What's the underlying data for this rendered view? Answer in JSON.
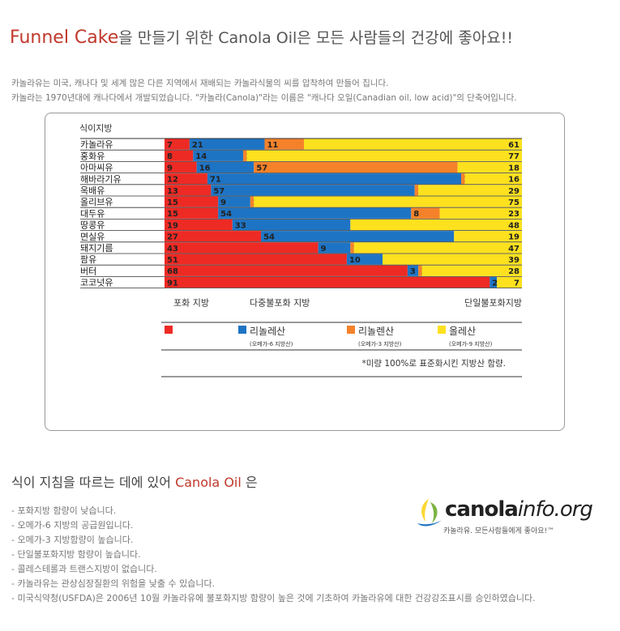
{
  "header": {
    "title_accent": "Funnel Cake",
    "title_rest": "을 만들기 위한 Canola Oil은 모든 사람들의 건강에 좋아요!!"
  },
  "intro": {
    "line1": "카놀라유는 미국, 캐나다 및 세계 많은 다른 지역에서 재배되는 카놀라식물의 씨를 압착하여 만들어 집니다.",
    "line2": "카놀라는 1970년대에 캐나다에서 개발되었습니다. \"카놀라(Canola)\"라는 이름은 \"캐나다 오일(Canadian oil, low acid)\"의 단축어입니다."
  },
  "chart_data": {
    "type": "bar",
    "stacked": true,
    "title": "식이지방",
    "categories": [
      "카놀라유",
      "홍화유",
      "아마씨유",
      "해바라기유",
      "옥배유",
      "올리브유",
      "대두유",
      "땅콩유",
      "면실유",
      "돼지기름",
      "팜유",
      "버터",
      "코코넛유"
    ],
    "series": [
      {
        "name": "포화 지방",
        "color": "#ee2a24",
        "values": [
          7,
          8,
          9,
          12,
          13,
          15,
          15,
          19,
          27,
          43,
          51,
          68,
          91
        ],
        "labels": [
          "7",
          "8",
          "9",
          "12",
          "13",
          "15",
          "15",
          "19",
          "27",
          "43",
          "51",
          "68",
          "91"
        ]
      },
      {
        "name": "리놀레산",
        "color": "#1e74c4",
        "values": [
          21,
          14,
          16,
          71,
          57,
          9,
          54,
          33,
          54,
          9,
          10,
          3,
          2
        ],
        "labels": [
          "21",
          "14",
          "16",
          "71",
          "57",
          "9",
          "54",
          "33",
          "54",
          "9",
          "10",
          "3",
          "2"
        ]
      },
      {
        "name": "리놀렌산",
        "color": "#f5822a",
        "values": [
          11,
          1,
          57,
          1,
          1,
          1,
          8,
          0,
          0,
          1,
          0,
          1,
          0
        ],
        "labels": [
          "11",
          "1",
          "57",
          "1",
          "1",
          "1",
          "8",
          "*",
          "*",
          "1",
          "*",
          "1",
          ""
        ]
      },
      {
        "name": "올레산",
        "color": "#fde11e",
        "values": [
          61,
          77,
          18,
          16,
          29,
          75,
          23,
          48,
          19,
          47,
          39,
          28,
          7
        ],
        "labels": [
          "61",
          "77",
          "18",
          "16",
          "29",
          "75",
          "23",
          "48",
          "19",
          "47",
          "39",
          "28",
          "7"
        ]
      }
    ],
    "xlim": [
      0,
      100
    ],
    "axis_labels": [
      "포화 지방",
      "다중불포화 지방",
      "단일불포화지방"
    ],
    "legend": [
      {
        "name": "",
        "color": "#ee2a24",
        "sub": ""
      },
      {
        "name": "리놀레산",
        "color": "#1e74c4",
        "sub": "(오메가-6 지방산)"
      },
      {
        "name": "리놀렌산",
        "color": "#f5822a",
        "sub": "(오메가-3 지방산)"
      },
      {
        "name": "올레산",
        "color": "#fde11e",
        "sub": "(오메가-9 지방산)"
      }
    ],
    "legend_position": "bottom",
    "footnote": "*미량    100%로  표준화시킨  지방산  함량.",
    "grid": false
  },
  "brand": {
    "logo_main": "canola",
    "logo_italic": "info.org",
    "tagline": "카놀라유. 모든사람들에게 좋아요!™"
  },
  "section2": {
    "title_pre": "식이 지침을 따르는 데에 있어 ",
    "title_accent": "Canola Oil",
    "title_post": " 은"
  },
  "bullets": [
    "- 포화지방 함량이 낮습니다.",
    "- 오메가-6 지방의 공급원입니다.",
    "- 오메가-3 지방함량이 높습니다.",
    "- 단일불포화지방 함량이 높습니다.",
    "- 콜레스테롤과 트랜스지방이 없습니다.",
    "- 카놀라유는 관상심장질환의 위험을 낮출 수 있습니다.",
    "- 미국식약청(USFDA)은 2006년 10월 카놀라유에 불포화지방 함량이 높은 것에 기초하여 카놀라유에 대한 건강강조표시를 승인하였습니다."
  ],
  "colors": {
    "accent": "#c0392b",
    "saturated": "#ee2a24",
    "linoleic": "#1e74c4",
    "linolenic": "#f5822a",
    "oleic": "#fde11e"
  }
}
